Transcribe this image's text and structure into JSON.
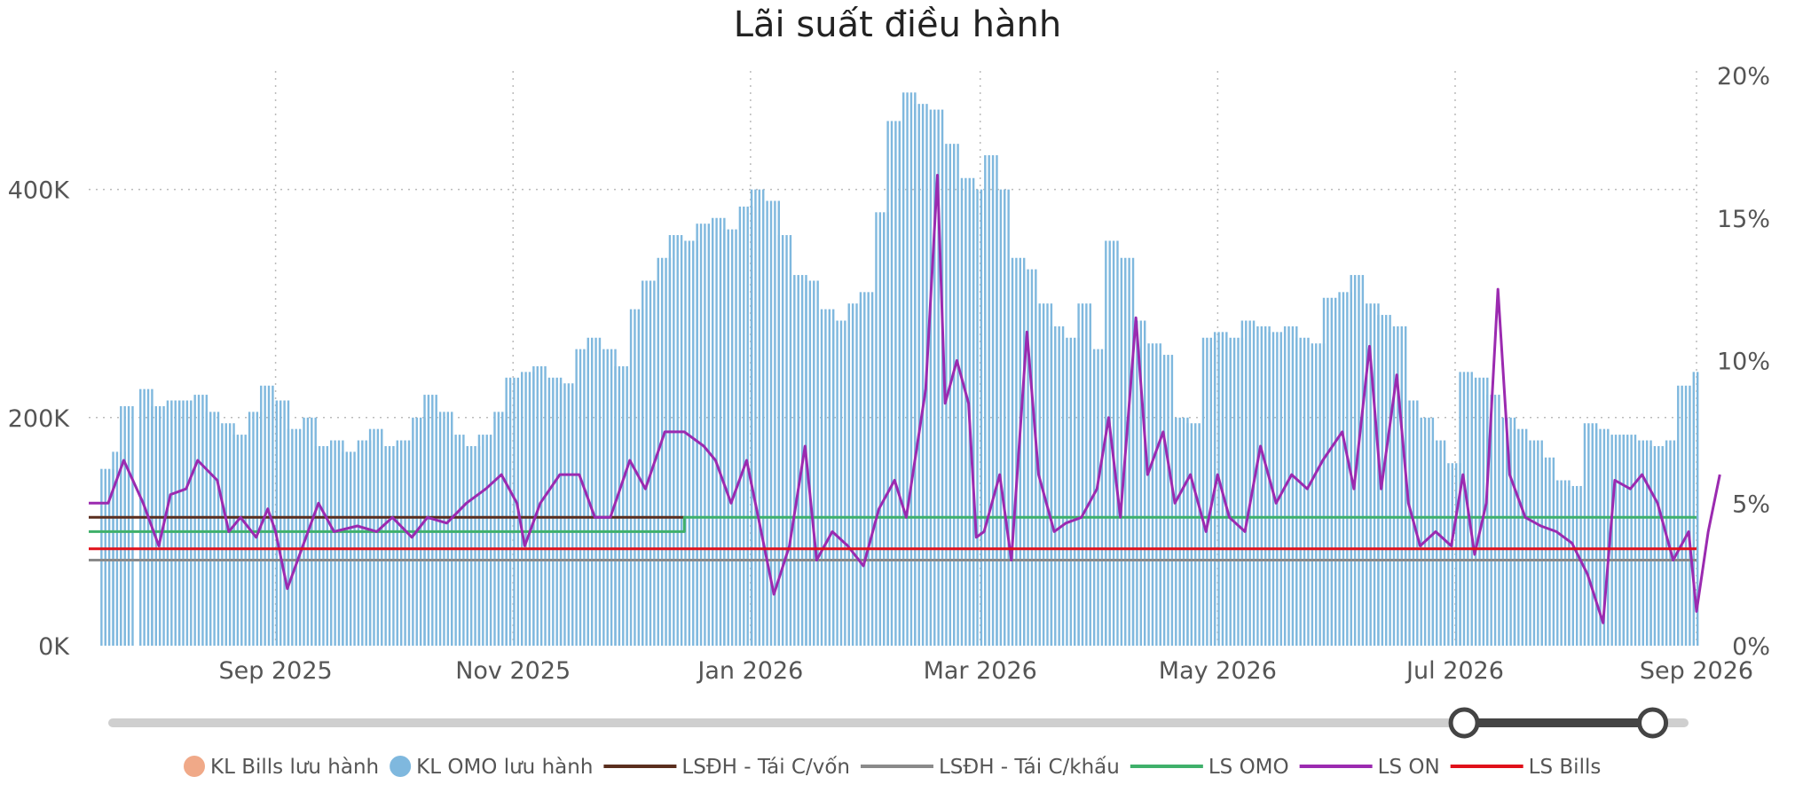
{
  "chart_data": {
    "type": "bar",
    "title": "Lãi suất điều hành",
    "xlabel": "",
    "ylabel": "",
    "y_left": {
      "ylim": [
        0,
        500000
      ],
      "ticks": [
        0,
        200000,
        400000
      ],
      "tick_labels": [
        "0K",
        "200K",
        "400K"
      ]
    },
    "y_right": {
      "ylim": [
        0,
        20
      ],
      "ticks": [
        0,
        5,
        10,
        15,
        20
      ],
      "tick_labels": [
        "0%",
        "5%",
        "10%",
        "15%",
        "20%"
      ]
    },
    "x_range": [
      "2025-07-15",
      "2026-09-01"
    ],
    "x_ticks": [
      {
        "date": "2025-09-01",
        "label": "Sep 2025"
      },
      {
        "date": "2025-11-01",
        "label": "Nov 2025"
      },
      {
        "date": "2026-01-01",
        "label": "Jan 2026"
      },
      {
        "date": "2026-03-01",
        "label": "Mar 2026"
      },
      {
        "date": "2026-05-01",
        "label": "May 2026"
      },
      {
        "date": "2026-07-01",
        "label": "Jul 2026"
      },
      {
        "date": "2026-09-01",
        "label": "Sep 2026"
      }
    ],
    "grid": true,
    "legend_position": "bottom",
    "series": [
      {
        "name": "KL Bills lưu hành",
        "kind": "bar",
        "color": "#F0A988",
        "values": []
      },
      {
        "name": "KL OMO lưu hành",
        "kind": "bar",
        "color": "#7FB8DE",
        "values": [
          [
            "2025-07-18",
            155000
          ],
          [
            "2025-07-21",
            170000
          ],
          [
            "2025-07-23",
            210000
          ],
          [
            "2025-07-28",
            225000
          ],
          [
            "2025-07-31",
            210000
          ],
          [
            "2025-08-04",
            215000
          ],
          [
            "2025-08-07",
            215000
          ],
          [
            "2025-08-11",
            220000
          ],
          [
            "2025-08-14",
            205000
          ],
          [
            "2025-08-18",
            195000
          ],
          [
            "2025-08-21",
            185000
          ],
          [
            "2025-08-25",
            205000
          ],
          [
            "2025-08-28",
            228000
          ],
          [
            "2025-09-01",
            215000
          ],
          [
            "2025-09-04",
            190000
          ],
          [
            "2025-09-08",
            200000
          ],
          [
            "2025-09-11",
            175000
          ],
          [
            "2025-09-15",
            180000
          ],
          [
            "2025-09-18",
            170000
          ],
          [
            "2025-09-22",
            180000
          ],
          [
            "2025-09-25",
            190000
          ],
          [
            "2025-09-29",
            175000
          ],
          [
            "2025-10-02",
            180000
          ],
          [
            "2025-10-06",
            200000
          ],
          [
            "2025-10-09",
            220000
          ],
          [
            "2025-10-13",
            205000
          ],
          [
            "2025-10-16",
            185000
          ],
          [
            "2025-10-20",
            175000
          ],
          [
            "2025-10-23",
            185000
          ],
          [
            "2025-10-27",
            205000
          ],
          [
            "2025-10-30",
            235000
          ],
          [
            "2025-11-03",
            240000
          ],
          [
            "2025-11-06",
            245000
          ],
          [
            "2025-11-10",
            235000
          ],
          [
            "2025-11-13",
            230000
          ],
          [
            "2025-11-17",
            260000
          ],
          [
            "2025-11-20",
            270000
          ],
          [
            "2025-11-24",
            260000
          ],
          [
            "2025-11-27",
            245000
          ],
          [
            "2025-12-01",
            295000
          ],
          [
            "2025-12-04",
            320000
          ],
          [
            "2025-12-08",
            340000
          ],
          [
            "2025-12-11",
            360000
          ],
          [
            "2025-12-15",
            355000
          ],
          [
            "2025-12-18",
            370000
          ],
          [
            "2025-12-22",
            375000
          ],
          [
            "2025-12-25",
            365000
          ],
          [
            "2025-12-29",
            385000
          ],
          [
            "2026-01-01",
            400000
          ],
          [
            "2026-01-05",
            390000
          ],
          [
            "2026-01-08",
            360000
          ],
          [
            "2026-01-12",
            325000
          ],
          [
            "2026-01-15",
            320000
          ],
          [
            "2026-01-19",
            295000
          ],
          [
            "2026-01-22",
            285000
          ],
          [
            "2026-01-26",
            300000
          ],
          [
            "2026-01-29",
            310000
          ],
          [
            "2026-02-02",
            380000
          ],
          [
            "2026-02-05",
            460000
          ],
          [
            "2026-02-09",
            485000
          ],
          [
            "2026-02-12",
            475000
          ],
          [
            "2026-02-16",
            470000
          ],
          [
            "2026-02-20",
            440000
          ],
          [
            "2026-02-24",
            410000
          ],
          [
            "2026-02-27",
            400000
          ],
          [
            "2026-03-02",
            430000
          ],
          [
            "2026-03-05",
            400000
          ],
          [
            "2026-03-09",
            340000
          ],
          [
            "2026-03-12",
            330000
          ],
          [
            "2026-03-16",
            300000
          ],
          [
            "2026-03-19",
            280000
          ],
          [
            "2026-03-23",
            270000
          ],
          [
            "2026-03-26",
            300000
          ],
          [
            "2026-03-30",
            260000
          ],
          [
            "2026-04-02",
            355000
          ],
          [
            "2026-04-06",
            340000
          ],
          [
            "2026-04-09",
            285000
          ],
          [
            "2026-04-13",
            265000
          ],
          [
            "2026-04-16",
            255000
          ],
          [
            "2026-04-20",
            200000
          ],
          [
            "2026-04-23",
            195000
          ],
          [
            "2026-04-27",
            270000
          ],
          [
            "2026-04-30",
            275000
          ],
          [
            "2026-05-04",
            270000
          ],
          [
            "2026-05-07",
            285000
          ],
          [
            "2026-05-11",
            280000
          ],
          [
            "2026-05-14",
            275000
          ],
          [
            "2026-05-18",
            280000
          ],
          [
            "2026-05-21",
            270000
          ],
          [
            "2026-05-25",
            265000
          ],
          [
            "2026-05-28",
            305000
          ],
          [
            "2026-06-01",
            310000
          ],
          [
            "2026-06-04",
            325000
          ],
          [
            "2026-06-08",
            300000
          ],
          [
            "2026-06-11",
            290000
          ],
          [
            "2026-06-15",
            280000
          ],
          [
            "2026-06-18",
            215000
          ],
          [
            "2026-06-22",
            200000
          ],
          [
            "2026-06-25",
            180000
          ],
          [
            "2026-06-29",
            160000
          ],
          [
            "2026-07-02",
            240000
          ],
          [
            "2026-07-06",
            235000
          ],
          [
            "2026-07-09",
            220000
          ],
          [
            "2026-07-13",
            200000
          ],
          [
            "2026-07-16",
            190000
          ],
          [
            "2026-07-20",
            180000
          ],
          [
            "2026-07-23",
            165000
          ],
          [
            "2026-07-27",
            145000
          ],
          [
            "2026-07-30",
            140000
          ],
          [
            "2026-08-03",
            195000
          ],
          [
            "2026-08-06",
            190000
          ],
          [
            "2026-08-10",
            185000
          ],
          [
            "2026-08-13",
            185000
          ],
          [
            "2026-08-17",
            180000
          ],
          [
            "2026-08-20",
            175000
          ],
          [
            "2026-08-24",
            180000
          ],
          [
            "2026-08-27",
            228000
          ],
          [
            "2026-08-31",
            240000
          ]
        ]
      },
      {
        "name": "LSĐH - Tái C/vốn",
        "kind": "line",
        "color": "#5A2E1E",
        "values": [
          [
            "2025-07-15",
            4.5
          ],
          [
            "2025-12-15",
            4.5
          ]
        ]
      },
      {
        "name": "LSĐH - Tái C/khấu",
        "kind": "line",
        "color": "#8A8A8A",
        "values": [
          [
            "2025-07-15",
            3.0
          ],
          [
            "2026-09-01",
            3.0
          ]
        ]
      },
      {
        "name": "LS OMO",
        "kind": "line",
        "color": "#3FB06A",
        "values": [
          [
            "2025-07-15",
            4.0
          ],
          [
            "2025-12-15",
            4.0
          ],
          [
            "2025-12-15",
            4.5
          ],
          [
            "2026-09-01",
            4.5
          ]
        ]
      },
      {
        "name": "LS ON",
        "kind": "line",
        "color": "#9B2AB0",
        "values": [
          [
            "2025-07-15",
            5.0
          ],
          [
            "2025-07-20",
            5.0
          ],
          [
            "2025-07-24",
            6.5
          ],
          [
            "2025-07-29",
            5.0
          ],
          [
            "2025-08-02",
            3.5
          ],
          [
            "2025-08-05",
            5.3
          ],
          [
            "2025-08-09",
            5.5
          ],
          [
            "2025-08-12",
            6.5
          ],
          [
            "2025-08-17",
            5.8
          ],
          [
            "2025-08-20",
            4.0
          ],
          [
            "2025-08-23",
            4.5
          ],
          [
            "2025-08-27",
            3.8
          ],
          [
            "2025-08-30",
            4.8
          ],
          [
            "2025-09-01",
            4.0
          ],
          [
            "2025-09-04",
            2.0
          ],
          [
            "2025-09-08",
            3.5
          ],
          [
            "2025-09-12",
            5.0
          ],
          [
            "2025-09-16",
            4.0
          ],
          [
            "2025-09-22",
            4.2
          ],
          [
            "2025-09-27",
            4.0
          ],
          [
            "2025-10-01",
            4.5
          ],
          [
            "2025-10-06",
            3.8
          ],
          [
            "2025-10-10",
            4.5
          ],
          [
            "2025-10-15",
            4.3
          ],
          [
            "2025-10-20",
            5.0
          ],
          [
            "2025-10-25",
            5.5
          ],
          [
            "2025-10-29",
            6.0
          ],
          [
            "2025-11-02",
            5.0
          ],
          [
            "2025-11-04",
            3.5
          ],
          [
            "2025-11-08",
            5.0
          ],
          [
            "2025-11-13",
            6.0
          ],
          [
            "2025-11-18",
            6.0
          ],
          [
            "2025-11-22",
            4.5
          ],
          [
            "2025-11-26",
            4.5
          ],
          [
            "2025-12-01",
            6.5
          ],
          [
            "2025-12-05",
            5.5
          ],
          [
            "2025-12-10",
            7.5
          ],
          [
            "2025-12-15",
            7.5
          ],
          [
            "2025-12-20",
            7.0
          ],
          [
            "2025-12-23",
            6.5
          ],
          [
            "2025-12-27",
            5.0
          ],
          [
            "2025-12-31",
            6.5
          ],
          [
            "2026-01-03",
            4.5
          ],
          [
            "2026-01-07",
            1.8
          ],
          [
            "2026-01-11",
            3.5
          ],
          [
            "2026-01-15",
            7.0
          ],
          [
            "2026-01-18",
            3.0
          ],
          [
            "2026-01-22",
            4.0
          ],
          [
            "2026-01-26",
            3.5
          ],
          [
            "2026-01-30",
            2.8
          ],
          [
            "2026-02-03",
            4.8
          ],
          [
            "2026-02-07",
            5.8
          ],
          [
            "2026-02-10",
            4.5
          ],
          [
            "2026-02-15",
            9.0
          ],
          [
            "2026-02-18",
            16.5
          ],
          [
            "2026-02-20",
            8.5
          ],
          [
            "2026-02-23",
            10.0
          ],
          [
            "2026-02-26",
            8.5
          ],
          [
            "2026-02-28",
            3.8
          ],
          [
            "2026-03-02",
            4.0
          ],
          [
            "2026-03-06",
            6.0
          ],
          [
            "2026-03-09",
            3.0
          ],
          [
            "2026-03-13",
            11.0
          ],
          [
            "2026-03-16",
            6.0
          ],
          [
            "2026-03-20",
            4.0
          ],
          [
            "2026-03-23",
            4.3
          ],
          [
            "2026-03-27",
            4.5
          ],
          [
            "2026-03-31",
            5.5
          ],
          [
            "2026-04-03",
            8.0
          ],
          [
            "2026-04-06",
            4.5
          ],
          [
            "2026-04-10",
            11.5
          ],
          [
            "2026-04-13",
            6.0
          ],
          [
            "2026-04-17",
            7.5
          ],
          [
            "2026-04-20",
            5.0
          ],
          [
            "2026-04-24",
            6.0
          ],
          [
            "2026-04-28",
            4.0
          ],
          [
            "2026-05-01",
            6.0
          ],
          [
            "2026-05-04",
            4.5
          ],
          [
            "2026-05-08",
            4.0
          ],
          [
            "2026-05-12",
            7.0
          ],
          [
            "2026-05-16",
            5.0
          ],
          [
            "2026-05-20",
            6.0
          ],
          [
            "2026-05-24",
            5.5
          ],
          [
            "2026-05-28",
            6.5
          ],
          [
            "2026-06-02",
            7.5
          ],
          [
            "2026-06-05",
            5.5
          ],
          [
            "2026-06-09",
            10.5
          ],
          [
            "2026-06-12",
            5.5
          ],
          [
            "2026-06-16",
            9.5
          ],
          [
            "2026-06-19",
            5.0
          ],
          [
            "2026-06-22",
            3.5
          ],
          [
            "2026-06-26",
            4.0
          ],
          [
            "2026-06-30",
            3.5
          ],
          [
            "2026-07-03",
            6.0
          ],
          [
            "2026-07-06",
            3.2
          ],
          [
            "2026-07-09",
            5.0
          ],
          [
            "2026-07-12",
            12.5
          ],
          [
            "2026-07-15",
            6.0
          ],
          [
            "2026-07-19",
            4.5
          ],
          [
            "2026-07-23",
            4.2
          ],
          [
            "2026-07-27",
            4.0
          ],
          [
            "2026-07-31",
            3.6
          ],
          [
            "2026-08-04",
            2.5
          ],
          [
            "2026-08-08",
            0.8
          ],
          [
            "2026-08-11",
            5.8
          ],
          [
            "2026-08-15",
            5.5
          ],
          [
            "2026-08-18",
            6.0
          ],
          [
            "2026-08-22",
            5.0
          ],
          [
            "2026-08-26",
            3.0
          ],
          [
            "2026-08-30",
            4.0
          ],
          [
            "2026-09-01",
            1.2
          ],
          [
            "2026-09-04",
            4.0
          ],
          [
            "2026-09-07",
            6.0
          ]
        ]
      },
      {
        "name": "LS Bills",
        "kind": "line",
        "color": "#E0101A",
        "values": [
          [
            "2025-07-15",
            3.4
          ],
          [
            "2026-09-01",
            3.4
          ]
        ]
      }
    ]
  },
  "slider": {
    "start": 0.86,
    "end": 0.98
  }
}
